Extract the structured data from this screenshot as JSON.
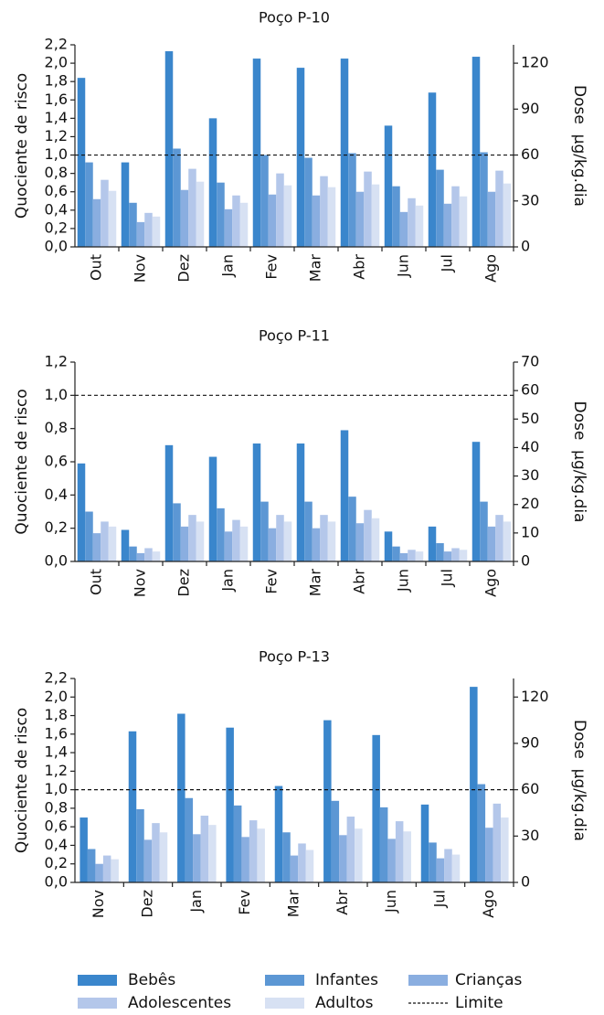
{
  "chart_data": [
    {
      "type": "bar",
      "title": "Poço P-10",
      "ylabel": "Quociente de risco",
      "y2label": "Dose  µg/kg.dia",
      "categories": [
        "Out",
        "Nov",
        "Dez",
        "Jan",
        "Fev",
        "Mar",
        "Abr",
        "Jun",
        "Jul",
        "Ago"
      ],
      "ylim": [
        0,
        2.2
      ],
      "yticks": [
        {
          "value": 0,
          "label": "0,0"
        },
        {
          "value": 0.2,
          "label": "0,2"
        },
        {
          "value": 0.4,
          "label": "0,4"
        },
        {
          "value": 0.6,
          "label": "0,6"
        },
        {
          "value": 0.8,
          "label": "0,8"
        },
        {
          "value": 1.0,
          "label": "1,0"
        },
        {
          "value": 1.2,
          "label": "1,2"
        },
        {
          "value": 1.4,
          "label": "1,4"
        },
        {
          "value": 1.6,
          "label": "1,6"
        },
        {
          "value": 1.8,
          "label": "1,8"
        },
        {
          "value": 2.0,
          "label": "2,0"
        },
        {
          "value": 2.2,
          "label": "2,2"
        }
      ],
      "y2lim": [
        0,
        132
      ],
      "y2ticks": [
        0,
        30,
        60,
        90,
        120
      ],
      "limit": 1.0,
      "limit_label": "Limite",
      "series": [
        {
          "name": "Bebês",
          "color": "#3a86cc",
          "values": [
            1.84,
            0.92,
            2.13,
            1.4,
            2.05,
            1.95,
            2.05,
            1.32,
            1.68,
            2.07
          ]
        },
        {
          "name": "Infantes",
          "color": "#5c97d4",
          "values": [
            0.92,
            0.48,
            1.07,
            0.7,
            1.0,
            0.97,
            1.02,
            0.66,
            0.84,
            1.03
          ]
        },
        {
          "name": "Crianças",
          "color": "#8aaee0",
          "values": [
            0.52,
            0.27,
            0.62,
            0.41,
            0.57,
            0.56,
            0.6,
            0.38,
            0.47,
            0.6
          ]
        },
        {
          "name": "Adolescentes",
          "color": "#b4c7ea",
          "values": [
            0.73,
            0.37,
            0.85,
            0.56,
            0.8,
            0.77,
            0.82,
            0.53,
            0.66,
            0.83
          ]
        },
        {
          "name": "Adultos",
          "color": "#d7e1f3",
          "values": [
            0.61,
            0.33,
            0.71,
            0.48,
            0.67,
            0.65,
            0.68,
            0.45,
            0.55,
            0.69
          ]
        }
      ]
    },
    {
      "type": "bar",
      "title": "Poço P-11",
      "ylabel": "Quociente de risco",
      "y2label": "Dose  µg/kg.dia",
      "categories": [
        "Out",
        "Nov",
        "Dez",
        "Jan",
        "Fev",
        "Mar",
        "Abr",
        "Jun",
        "Jul",
        "Ago"
      ],
      "ylim": [
        0,
        1.2
      ],
      "yticks": [
        {
          "value": 0,
          "label": "0,0"
        },
        {
          "value": 0.2,
          "label": "0,2"
        },
        {
          "value": 0.4,
          "label": "0,4"
        },
        {
          "value": 0.6,
          "label": "0,6"
        },
        {
          "value": 0.8,
          "label": "0,8"
        },
        {
          "value": 1.0,
          "label": "1,0"
        },
        {
          "value": 1.2,
          "label": "1,2"
        }
      ],
      "y2lim": [
        0,
        70
      ],
      "y2ticks": [
        0,
        10,
        20,
        30,
        40,
        50,
        60,
        70
      ],
      "limit": 1.0,
      "series": [
        {
          "values": [
            0.59,
            0.19,
            0.7,
            0.63,
            0.71,
            0.71,
            0.79,
            0.18,
            0.21,
            0.72
          ]
        },
        {
          "values": [
            0.3,
            0.09,
            0.35,
            0.32,
            0.36,
            0.36,
            0.39,
            0.09,
            0.11,
            0.36
          ]
        },
        {
          "values": [
            0.17,
            0.05,
            0.21,
            0.18,
            0.2,
            0.2,
            0.23,
            0.05,
            0.06,
            0.21
          ]
        },
        {
          "values": [
            0.24,
            0.08,
            0.28,
            0.25,
            0.28,
            0.28,
            0.31,
            0.07,
            0.08,
            0.28
          ]
        },
        {
          "values": [
            0.21,
            0.06,
            0.24,
            0.21,
            0.24,
            0.24,
            0.26,
            0.06,
            0.07,
            0.24
          ]
        }
      ]
    },
    {
      "type": "bar",
      "title": "Poço P-13",
      "ylabel": "Quociente de risco",
      "y2label": "Dose  µg/kg.dia",
      "categories": [
        "Nov",
        "Dez",
        "Jan",
        "Fev",
        "Mar",
        "Abr",
        "Jun",
        "Jul",
        "Ago"
      ],
      "ylim": [
        0,
        2.2
      ],
      "yticks": [
        {
          "value": 0,
          "label": "0,0"
        },
        {
          "value": 0.2,
          "label": "0,2"
        },
        {
          "value": 0.4,
          "label": "0,4"
        },
        {
          "value": 0.6,
          "label": "0,6"
        },
        {
          "value": 0.8,
          "label": "0,8"
        },
        {
          "value": 1.0,
          "label": "1,0"
        },
        {
          "value": 1.2,
          "label": "1,2"
        },
        {
          "value": 1.4,
          "label": "1,4"
        },
        {
          "value": 1.6,
          "label": "1,6"
        },
        {
          "value": 1.8,
          "label": "1,8"
        },
        {
          "value": 2.0,
          "label": "2,0"
        },
        {
          "value": 2.2,
          "label": "2,2"
        }
      ],
      "y2lim": [
        0,
        132
      ],
      "y2ticks": [
        0,
        30,
        60,
        90,
        120
      ],
      "limit": 1.0,
      "series": [
        {
          "values": [
            0.7,
            1.63,
            1.82,
            1.67,
            1.04,
            1.75,
            1.59,
            0.84,
            2.11
          ]
        },
        {
          "values": [
            0.36,
            0.79,
            0.91,
            0.83,
            0.54,
            0.88,
            0.81,
            0.43,
            1.06
          ]
        },
        {
          "values": [
            0.2,
            0.46,
            0.52,
            0.49,
            0.29,
            0.51,
            0.47,
            0.26,
            0.59
          ]
        },
        {
          "values": [
            0.29,
            0.64,
            0.72,
            0.67,
            0.42,
            0.71,
            0.66,
            0.36,
            0.85
          ]
        },
        {
          "values": [
            0.25,
            0.54,
            0.62,
            0.58,
            0.35,
            0.58,
            0.55,
            0.3,
            0.7
          ]
        }
      ]
    }
  ]
}
